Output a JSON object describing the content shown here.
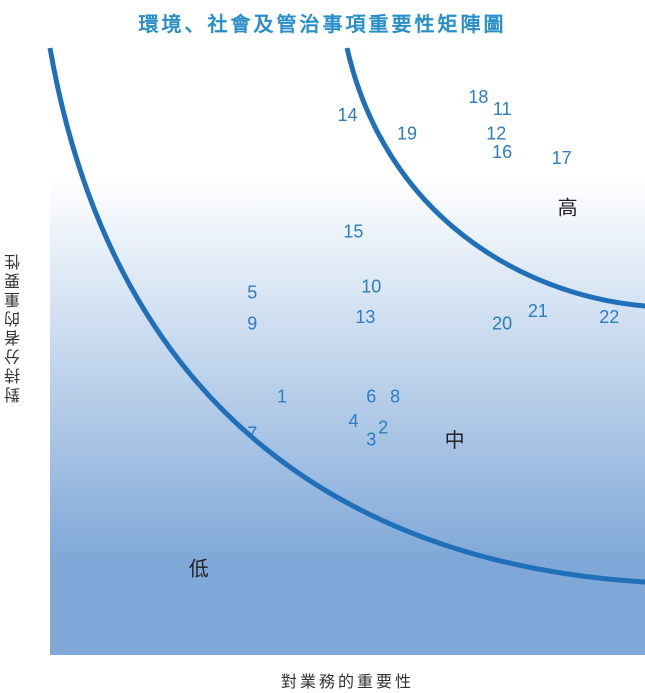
{
  "title_color": "#2a8fc8",
  "point_color": "#2b7dc0",
  "curve_color": "#1f70b8",
  "bg_top": "#ffffff",
  "bg_bottom": "#7fa8d8",
  "chart_data": {
    "type": "scatter",
    "title": "環境、社會及管治事項重要性矩陣圖",
    "xlabel": "對業務的重要性",
    "ylabel": "對持分者的重要性",
    "xlim": [
      0,
      100
    ],
    "ylim": [
      0,
      100
    ],
    "zones": [
      {
        "label": "低",
        "x": 25,
        "y": 13
      },
      {
        "label": "中",
        "x": 68,
        "y": 34
      },
      {
        "label": "高",
        "x": 87,
        "y": 72
      }
    ],
    "points": [
      {
        "label": "1",
        "x": 39,
        "y": 42
      },
      {
        "label": "2",
        "x": 56,
        "y": 37
      },
      {
        "label": "3",
        "x": 54,
        "y": 35
      },
      {
        "label": "4",
        "x": 51,
        "y": 38
      },
      {
        "label": "5",
        "x": 34,
        "y": 59
      },
      {
        "label": "6",
        "x": 54,
        "y": 42
      },
      {
        "label": "7",
        "x": 34,
        "y": 36
      },
      {
        "label": "8",
        "x": 58,
        "y": 42
      },
      {
        "label": "9",
        "x": 34,
        "y": 54
      },
      {
        "label": "10",
        "x": 54,
        "y": 60
      },
      {
        "label": "11",
        "x": 76,
        "y": 89
      },
      {
        "label": "12",
        "x": 75,
        "y": 85
      },
      {
        "label": "13",
        "x": 53,
        "y": 55
      },
      {
        "label": "14",
        "x": 50,
        "y": 88
      },
      {
        "label": "15",
        "x": 51,
        "y": 69
      },
      {
        "label": "16",
        "x": 76,
        "y": 82
      },
      {
        "label": "17",
        "x": 86,
        "y": 81
      },
      {
        "label": "18",
        "x": 72,
        "y": 91
      },
      {
        "label": "19",
        "x": 60,
        "y": 85
      },
      {
        "label": "20",
        "x": 76,
        "y": 54
      },
      {
        "label": "21",
        "x": 82,
        "y": 56
      },
      {
        "label": "22",
        "x": 94,
        "y": 55
      }
    ],
    "boundaries": [
      "low-medium",
      "medium-high"
    ],
    "grid": false,
    "legend": "none"
  }
}
